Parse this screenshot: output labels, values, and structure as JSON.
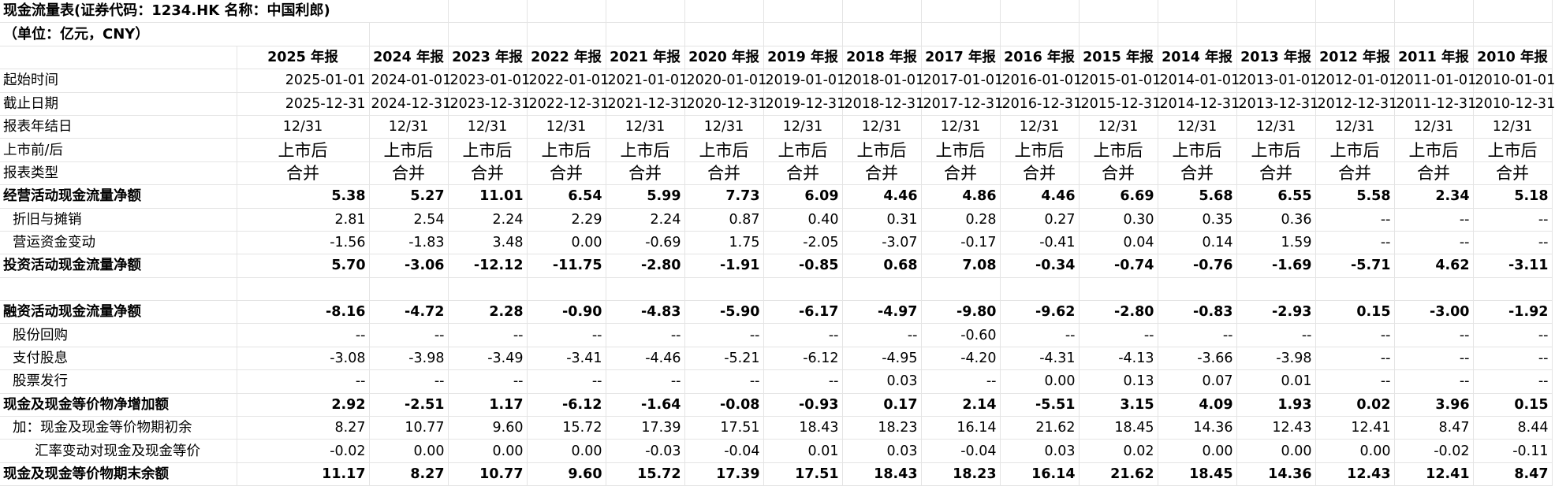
{
  "title_line1": "现金流量表(证券代码：1234.HK 名称：中国利郎)",
  "title_line2": "（单位：亿元，CNY）",
  "years": [
    "2025 年报",
    "2024 年报",
    "2023 年报",
    "2022 年报",
    "2021 年报",
    "2020 年报",
    "2019 年报",
    "2018 年报",
    "2017 年报",
    "2016 年报",
    "2015 年报",
    "2014 年报",
    "2013 年报",
    "2012 年报",
    "2011 年报",
    "2010 年报"
  ],
  "info_rows": [
    {
      "label": "起始时间",
      "values": [
        "2025-01-01",
        "2024-01-01",
        "2023-01-01",
        "2022-01-01",
        "2021-01-01",
        "2020-01-01",
        "2019-01-01",
        "2018-01-01",
        "2017-01-01",
        "2016-01-01",
        "2015-01-01",
        "2014-01-01",
        "2013-01-01",
        "2012-01-01",
        "2011-01-01",
        "2010-01-01"
      ]
    },
    {
      "label": "截止日期",
      "values": [
        "2025-12-31",
        "2024-12-31",
        "2023-12-31",
        "2022-12-31",
        "2021-12-31",
        "2020-12-31",
        "2019-12-31",
        "2018-12-31",
        "2017-12-31",
        "2016-12-31",
        "2015-12-31",
        "2014-12-31",
        "2013-12-31",
        "2012-12-31",
        "2011-12-31",
        "2010-12-31"
      ]
    },
    {
      "label": "报表年结日",
      "values": [
        "12/31",
        "12/31",
        "12/31",
        "12/31",
        "12/31",
        "12/31",
        "12/31",
        "12/31",
        "12/31",
        "12/31",
        "12/31",
        "12/31",
        "12/31",
        "12/31",
        "12/31",
        "12/31"
      ]
    },
    {
      "label": "上市前/后",
      "values": [
        "上市后",
        "上市后",
        "上市后",
        "上市后",
        "上市后",
        "上市后",
        "上市后",
        "上市后",
        "上市后",
        "上市后",
        "上市后",
        "上市后",
        "上市后",
        "上市后",
        "上市后",
        "上市后"
      ]
    },
    {
      "label": "报表类型",
      "values": [
        "合并",
        "合并",
        "合并",
        "合并",
        "合并",
        "合并",
        "合并",
        "合并",
        "合并",
        "合并",
        "合并",
        "合并",
        "合并",
        "合并",
        "合并",
        "合并"
      ]
    }
  ],
  "data_rows": [
    {
      "label": "经营活动现金流量净额",
      "values": [
        "5.38",
        "5.27",
        "11.01",
        "6.54",
        "5.99",
        "7.73",
        "6.09",
        "4.46",
        "4.86",
        "4.46",
        "6.69",
        "5.68",
        "6.55",
        "5.58",
        "2.34",
        "5.18"
      ]
    },
    {
      "label": "折旧与摊销",
      "values": [
        "2.81",
        "2.54",
        "2.24",
        "2.29",
        "2.24",
        "0.87",
        "0.40",
        "0.31",
        "0.28",
        "0.27",
        "0.30",
        "0.35",
        "0.36",
        "--",
        "--",
        "--"
      ]
    },
    {
      "label": "营运资金变动",
      "values": [
        "-1.56",
        "-1.83",
        "3.48",
        "0.00",
        "-0.69",
        "1.75",
        "-2.05",
        "-3.07",
        "-0.17",
        "-0.41",
        "0.04",
        "0.14",
        "1.59",
        "--",
        "--",
        "--"
      ]
    },
    {
      "label": "投资活动现金流量净额",
      "values": [
        "5.70",
        "-3.06",
        "-12.12",
        "-11.75",
        "-2.80",
        "-1.91",
        "-0.85",
        "0.68",
        "7.08",
        "-0.34",
        "-0.74",
        "-0.76",
        "-1.69",
        "-5.71",
        "4.62",
        "-3.11"
      ]
    },
    {
      "label": "融资活动现金流量净额",
      "values": [
        "-8.16",
        "-4.72",
        "2.28",
        "-0.90",
        "-4.83",
        "-5.90",
        "-6.17",
        "-4.97",
        "-9.80",
        "-9.62",
        "-2.80",
        "-0.83",
        "-2.93",
        "0.15",
        "-3.00",
        "-1.92"
      ]
    },
    {
      "label": "股份回购",
      "values": [
        "--",
        "--",
        "--",
        "--",
        "--",
        "--",
        "--",
        "--",
        "-0.60",
        "--",
        "--",
        "--",
        "--",
        "--",
        "--",
        "--"
      ]
    },
    {
      "label": "支付股息",
      "values": [
        "-3.08",
        "-3.98",
        "-3.49",
        "-3.41",
        "-4.46",
        "-5.21",
        "-6.12",
        "-4.95",
        "-4.20",
        "-4.31",
        "-4.13",
        "-3.66",
        "-3.98",
        "--",
        "--",
        "--"
      ]
    },
    {
      "label": "股票发行",
      "values": [
        "--",
        "--",
        "--",
        "--",
        "--",
        "--",
        "--",
        "0.03",
        "--",
        "0.00",
        "0.13",
        "0.07",
        "0.01",
        "--",
        "--",
        "--"
      ]
    },
    {
      "label": "现金及现金等价物净增加额",
      "values": [
        "2.92",
        "-2.51",
        "1.17",
        "-6.12",
        "-1.64",
        "-0.08",
        "-0.93",
        "0.17",
        "2.14",
        "-5.51",
        "3.15",
        "4.09",
        "1.93",
        "0.02",
        "3.96",
        "0.15"
      ]
    },
    {
      "label": "加：现金及现金等价物期初余",
      "values": [
        "8.27",
        "10.77",
        "9.60",
        "15.72",
        "17.39",
        "17.51",
        "18.43",
        "18.23",
        "16.14",
        "21.62",
        "18.45",
        "14.36",
        "12.43",
        "12.41",
        "8.47",
        "8.44"
      ]
    },
    {
      "label": "汇率变动对现金及现金等价",
      "values": [
        "-0.02",
        "0.00",
        "0.00",
        "0.00",
        "-0.03",
        "-0.04",
        "0.01",
        "0.03",
        "-0.04",
        "0.03",
        "0.02",
        "0.00",
        "0.00",
        "0.00",
        "-0.02",
        "-0.11"
      ]
    },
    {
      "label": "现金及现金等价物期末余额",
      "values": [
        "11.17",
        "8.27",
        "10.77",
        "9.60",
        "15.72",
        "17.39",
        "17.51",
        "18.43",
        "18.23",
        "16.14",
        "21.62",
        "18.45",
        "14.36",
        "12.43",
        "12.41",
        "8.47"
      ]
    }
  ]
}
